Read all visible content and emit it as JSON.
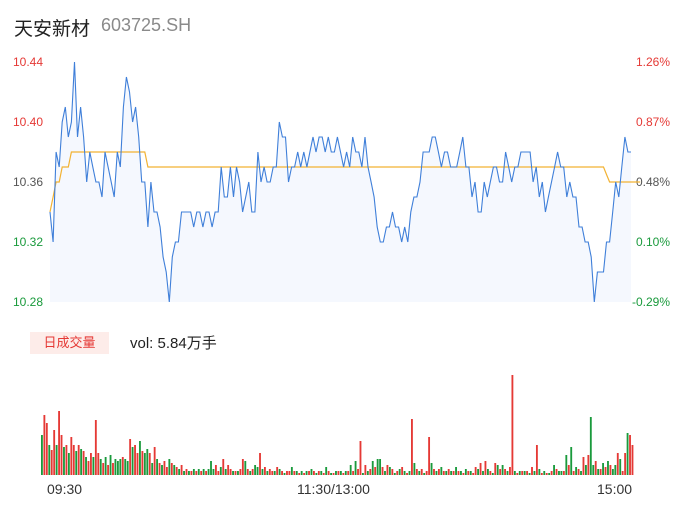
{
  "header": {
    "name": "天安新材",
    "code": "603725.SH"
  },
  "chart_data": {
    "type": "line",
    "price_axis": {
      "ticks": [
        "10.44",
        "10.40",
        "10.36",
        "10.32",
        "10.28"
      ],
      "ylim": [
        10.28,
        10.44
      ]
    },
    "pct_axis": {
      "ticks": [
        "1.26%",
        "0.87%",
        "0.48%",
        "0.10%",
        "-0.29%"
      ]
    },
    "x_ticks": [
      "09:30",
      "11:30/13:00",
      "15:00"
    ],
    "price_series": [
      10.34,
      10.32,
      10.38,
      10.37,
      10.4,
      10.41,
      10.39,
      10.4,
      10.44,
      10.39,
      10.41,
      10.39,
      10.36,
      10.38,
      10.37,
      10.36,
      10.36,
      10.35,
      10.38,
      10.37,
      10.36,
      10.35,
      10.38,
      10.37,
      10.41,
      10.43,
      10.42,
      10.4,
      10.41,
      10.39,
      10.36,
      10.36,
      10.33,
      10.36,
      10.34,
      10.34,
      10.33,
      10.31,
      10.3,
      10.28,
      10.31,
      10.32,
      10.32,
      10.34,
      10.34,
      10.34,
      10.34,
      10.33,
      10.34,
      10.34,
      10.33,
      10.34,
      10.34,
      10.33,
      10.34,
      10.34,
      10.37,
      10.35,
      10.35,
      10.37,
      10.35,
      10.37,
      10.36,
      10.34,
      10.35,
      10.36,
      10.34,
      10.34,
      10.38,
      10.36,
      10.37,
      10.36,
      10.36,
      10.37,
      10.37,
      10.4,
      10.39,
      10.39,
      10.36,
      10.37,
      10.37,
      10.38,
      10.37,
      10.38,
      10.37,
      10.38,
      10.39,
      10.38,
      10.39,
      10.39,
      10.38,
      10.39,
      10.38,
      10.38,
      10.39,
      10.38,
      10.37,
      10.38,
      10.37,
      10.39,
      10.38,
      10.38,
      10.37,
      10.39,
      10.37,
      10.36,
      10.35,
      10.33,
      10.32,
      10.32,
      10.33,
      10.33,
      10.34,
      10.33,
      10.33,
      10.32,
      10.33,
      10.32,
      10.34,
      10.35,
      10.35,
      10.36,
      10.38,
      10.38,
      10.38,
      10.39,
      10.39,
      10.38,
      10.37,
      10.38,
      10.38,
      10.37,
      10.37,
      10.37,
      10.38,
      10.39,
      10.37,
      10.37,
      10.35,
      10.36,
      10.34,
      10.34,
      10.36,
      10.35,
      10.36,
      10.37,
      10.37,
      10.36,
      10.36,
      10.38,
      10.37,
      10.36,
      10.37,
      10.37,
      10.38,
      10.38,
      10.38,
      10.38,
      10.36,
      10.37,
      10.35,
      10.36,
      10.34,
      10.35,
      10.36,
      10.37,
      10.38,
      10.37,
      10.37,
      10.35,
      10.36,
      10.35,
      10.35,
      10.33,
      10.33,
      10.32,
      10.32,
      10.31,
      10.28,
      10.3,
      10.3,
      10.3,
      10.32,
      10.32,
      10.34,
      10.36,
      10.35,
      10.37,
      10.39,
      10.38,
      10.38
    ],
    "avg_series": [
      10.34,
      10.35,
      10.36,
      10.36,
      10.37,
      10.37,
      10.37,
      10.38,
      10.38,
      10.38,
      10.38,
      10.38,
      10.38,
      10.38,
      10.38,
      10.38,
      10.38,
      10.38,
      10.38,
      10.38,
      10.38,
      10.38,
      10.38,
      10.38,
      10.38,
      10.38,
      10.38,
      10.38,
      10.38,
      10.38,
      10.38,
      10.38,
      10.37,
      10.37,
      10.37,
      10.37,
      10.37,
      10.37,
      10.37,
      10.37,
      10.37,
      10.37,
      10.37,
      10.37,
      10.37,
      10.37,
      10.37,
      10.37,
      10.37,
      10.37,
      10.37,
      10.37,
      10.37,
      10.37,
      10.37,
      10.37,
      10.37,
      10.37,
      10.37,
      10.37,
      10.37,
      10.37,
      10.37,
      10.37,
      10.37,
      10.37,
      10.37,
      10.37,
      10.37,
      10.37,
      10.37,
      10.37,
      10.37,
      10.37,
      10.37,
      10.37,
      10.37,
      10.37,
      10.37,
      10.37,
      10.37,
      10.37,
      10.37,
      10.37,
      10.37,
      10.37,
      10.37,
      10.37,
      10.37,
      10.37,
      10.37,
      10.37,
      10.37,
      10.37,
      10.37,
      10.37,
      10.37,
      10.37,
      10.37,
      10.37,
      10.37,
      10.37,
      10.37,
      10.37,
      10.37,
      10.37,
      10.37,
      10.37,
      10.37,
      10.37,
      10.37,
      10.37,
      10.37,
      10.37,
      10.37,
      10.37,
      10.37,
      10.37,
      10.37,
      10.37,
      10.37,
      10.37,
      10.37,
      10.37,
      10.37,
      10.37,
      10.37,
      10.37,
      10.37,
      10.37,
      10.37,
      10.37,
      10.37,
      10.37,
      10.37,
      10.37,
      10.37,
      10.37,
      10.37,
      10.37,
      10.37,
      10.37,
      10.37,
      10.37,
      10.37,
      10.37,
      10.37,
      10.37,
      10.37,
      10.37,
      10.37,
      10.37,
      10.37,
      10.37,
      10.37,
      10.37,
      10.37,
      10.37,
      10.37,
      10.37,
      10.37,
      10.37,
      10.37,
      10.37,
      10.37,
      10.37,
      10.37,
      10.37,
      10.37,
      10.37,
      10.37,
      10.37,
      10.37,
      10.37,
      10.37,
      10.37,
      10.37,
      10.37,
      10.37,
      10.37,
      10.37,
      10.37,
      10.365,
      10.36,
      10.36,
      10.36,
      10.36,
      10.36,
      10.36,
      10.36,
      10.36,
      10.36,
      10.36,
      10.36
    ],
    "volume": {
      "label": "日成交量",
      "summary": "vol: 5.84万手",
      "values": [
        40,
        60,
        52,
        30,
        25,
        45,
        30,
        64,
        40,
        28,
        30,
        22,
        38,
        30,
        24,
        30,
        26,
        24,
        18,
        14,
        22,
        18,
        55,
        22,
        16,
        12,
        18,
        10,
        20,
        12,
        16,
        14,
        16,
        18,
        16,
        14,
        36,
        28,
        30,
        22,
        34,
        24,
        22,
        26,
        22,
        12,
        28,
        16,
        12,
        10,
        14,
        8,
        16,
        12,
        10,
        8,
        6,
        10,
        4,
        6,
        4,
        4,
        6,
        4,
        6,
        4,
        6,
        4,
        6,
        14,
        6,
        10,
        4,
        8,
        16,
        6,
        10,
        6,
        4,
        4,
        4,
        6,
        16,
        14,
        6,
        4,
        6,
        10,
        8,
        22,
        6,
        8,
        4,
        6,
        4,
        4,
        8,
        6,
        4,
        2,
        4,
        4,
        8,
        4,
        4,
        2,
        4,
        2,
        4,
        4,
        6,
        4,
        2,
        4,
        4,
        2,
        8,
        4,
        2,
        2,
        4,
        4,
        4,
        2,
        4,
        4,
        10,
        4,
        14,
        6,
        34,
        2,
        10,
        4,
        6,
        14,
        8,
        16,
        16,
        8,
        4,
        10,
        8,
        6,
        2,
        4,
        6,
        8,
        4,
        2,
        4,
        56,
        12,
        6,
        4,
        6,
        2,
        4,
        38,
        12,
        6,
        4,
        6,
        8,
        4,
        4,
        6,
        4,
        4,
        8,
        4,
        4,
        2,
        6,
        4,
        4,
        2,
        8,
        6,
        12,
        4,
        14,
        6,
        4,
        2,
        12,
        10,
        6,
        10,
        6,
        4,
        8,
        100,
        4,
        2,
        4,
        4,
        4,
        4,
        2,
        8,
        4,
        30,
        6,
        2,
        4,
        2,
        2,
        4,
        10,
        6,
        4,
        4,
        4,
        20,
        10,
        28,
        4,
        8,
        6,
        4,
        18,
        10,
        20,
        58,
        10,
        14,
        6,
        6,
        12,
        8,
        14,
        10,
        6,
        10,
        22,
        16,
        4,
        22,
        42,
        40,
        30
      ],
      "colors": [
        "g",
        "r",
        "r",
        "g",
        "r",
        "r",
        "g",
        "r",
        "r",
        "g",
        "r",
        "g",
        "r",
        "r",
        "g",
        "r",
        "g",
        "r",
        "g",
        "r",
        "r",
        "g",
        "r",
        "r",
        "g",
        "r",
        "g",
        "r",
        "g",
        "r",
        "g",
        "g",
        "g",
        "r",
        "g",
        "g",
        "r",
        "g",
        "r",
        "r",
        "g",
        "r",
        "g",
        "g",
        "r",
        "g",
        "r",
        "g",
        "r",
        "g",
        "r",
        "r",
        "g",
        "r",
        "g",
        "r",
        "g",
        "r",
        "g",
        "r",
        "g",
        "r",
        "g",
        "r",
        "g",
        "r",
        "g",
        "r",
        "g",
        "g",
        "g",
        "r",
        "r",
        "g",
        "r",
        "g",
        "r",
        "r",
        "g",
        "r",
        "g",
        "r",
        "r",
        "g",
        "r",
        "g",
        "r",
        "g",
        "g",
        "r",
        "g",
        "r",
        "g",
        "r",
        "r",
        "g",
        "r",
        "g",
        "r",
        "g",
        "r",
        "r",
        "g",
        "r",
        "g",
        "r",
        "g",
        "r",
        "g",
        "r",
        "g",
        "r",
        "g",
        "r",
        "g",
        "r",
        "g",
        "r",
        "g",
        "r",
        "g",
        "r",
        "g",
        "r",
        "g",
        "r",
        "g",
        "r",
        "g",
        "r",
        "r",
        "g",
        "r",
        "g",
        "r",
        "g",
        "r",
        "g",
        "g",
        "r",
        "g",
        "r",
        "g",
        "r",
        "g",
        "r",
        "g",
        "r",
        "g",
        "r",
        "g",
        "r",
        "g",
        "r",
        "g",
        "r",
        "g",
        "r",
        "r",
        "g",
        "r",
        "g",
        "r",
        "g",
        "r",
        "g",
        "r",
        "g",
        "r",
        "g",
        "r",
        "g",
        "r",
        "g",
        "r",
        "g",
        "r",
        "r",
        "g",
        "r",
        "g",
        "r",
        "g",
        "r",
        "g",
        "r",
        "g",
        "r",
        "g",
        "r",
        "g",
        "r",
        "r",
        "g",
        "r",
        "g",
        "r",
        "g",
        "r",
        "g",
        "r",
        "g",
        "r",
        "g",
        "r",
        "g",
        "r",
        "g",
        "r",
        "g",
        "r",
        "g",
        "g",
        "r",
        "g",
        "r",
        "g",
        "r",
        "g",
        "r",
        "g",
        "r",
        "g",
        "r",
        "g",
        "g",
        "r",
        "g",
        "r",
        "g",
        "r",
        "g",
        "r",
        "g",
        "g",
        "r",
        "g",
        "r",
        "r",
        "g",
        "r",
        "r",
        "r"
      ]
    },
    "colors": {
      "price_line": "#3f7fd9",
      "avg_line": "#f2b233",
      "area_fill": "#f5f8fe",
      "up": "#e53935",
      "down": "#1a9a3c"
    }
  }
}
